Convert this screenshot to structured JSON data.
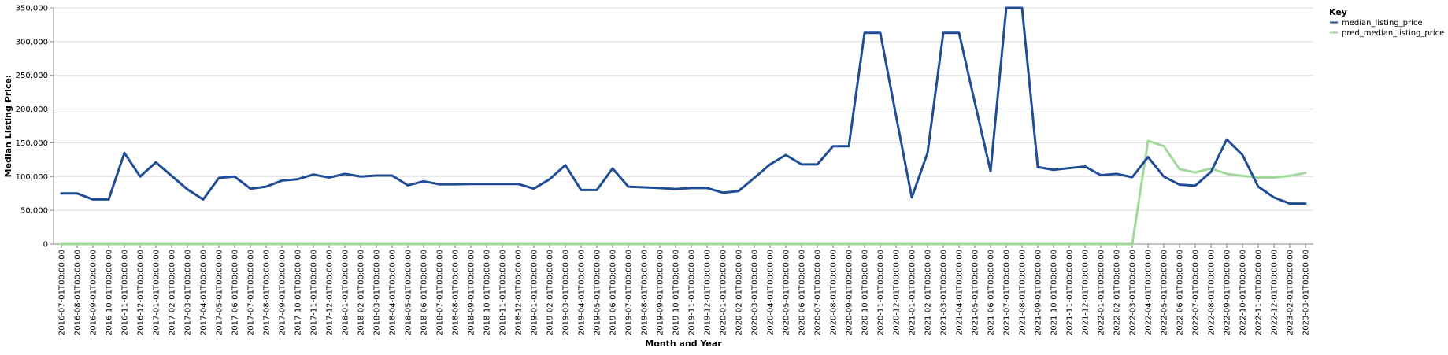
{
  "chart_data": {
    "type": "line",
    "xlabel": "Month and Year",
    "ylabel": "Median Listing Price:",
    "ylim": [
      0,
      350000
    ],
    "y_ticks": [
      0,
      50000,
      100000,
      150000,
      200000,
      250000,
      300000,
      350000
    ],
    "y_tick_labels": [
      "0",
      "50,000",
      "100,000",
      "150,000",
      "200,000",
      "250,000",
      "300,000",
      "350,000"
    ],
    "grid": true,
    "legend_position": "top-right",
    "legend": {
      "title": "Key",
      "entries": [
        {
          "label": "median_listing_price",
          "color": "#1f4e96"
        },
        {
          "label": "pred_median_listing_price",
          "color": "#a1d99b"
        }
      ]
    },
    "categories": [
      "2016-07-01T00:00:00",
      "2016-08-01T00:00:00",
      "2016-09-01T00:00:00",
      "2016-10-01T00:00:00",
      "2016-11-01T00:00:00",
      "2016-12-01T00:00:00",
      "2017-01-01T00:00:00",
      "2017-02-01T00:00:00",
      "2017-03-01T00:00:00",
      "2017-04-01T00:00:00",
      "2017-05-01T00:00:00",
      "2017-06-01T00:00:00",
      "2017-07-01T00:00:00",
      "2017-08-01T00:00:00",
      "2017-09-01T00:00:00",
      "2017-10-01T00:00:00",
      "2017-11-01T00:00:00",
      "2017-12-01T00:00:00",
      "2018-01-01T00:00:00",
      "2018-02-01T00:00:00",
      "2018-03-01T00:00:00",
      "2018-04-01T00:00:00",
      "2018-05-01T00:00:00",
      "2018-06-01T00:00:00",
      "2018-07-01T00:00:00",
      "2018-08-01T00:00:00",
      "2018-09-01T00:00:00",
      "2018-10-01T00:00:00",
      "2018-11-01T00:00:00",
      "2018-12-01T00:00:00",
      "2019-01-01T00:00:00",
      "2019-02-01T00:00:00",
      "2019-03-01T00:00:00",
      "2019-04-01T00:00:00",
      "2019-05-01T00:00:00",
      "2019-06-01T00:00:00",
      "2019-07-01T00:00:00",
      "2019-08-01T00:00:00",
      "2019-09-01T00:00:00",
      "2019-10-01T00:00:00",
      "2019-11-01T00:00:00",
      "2019-12-01T00:00:00",
      "2020-01-01T00:00:00",
      "2020-02-01T00:00:00",
      "2020-03-01T00:00:00",
      "2020-04-01T00:00:00",
      "2020-05-01T00:00:00",
      "2020-06-01T00:00:00",
      "2020-07-01T00:00:00",
      "2020-08-01T00:00:00",
      "2020-09-01T00:00:00",
      "2020-10-01T00:00:00",
      "2020-11-01T00:00:00",
      "2020-12-01T00:00:00",
      "2021-01-01T00:00:00",
      "2021-02-01T00:00:00",
      "2021-03-01T00:00:00",
      "2021-04-01T00:00:00",
      "2021-05-01T00:00:00",
      "2021-06-01T00:00:00",
      "2021-07-01T00:00:00",
      "2021-08-01T00:00:00",
      "2021-09-01T00:00:00",
      "2021-10-01T00:00:00",
      "2021-11-01T00:00:00",
      "2021-12-01T00:00:00",
      "2022-01-01T00:00:00",
      "2022-02-01T00:00:00",
      "2022-03-01T00:00:00",
      "2022-04-01T00:00:00",
      "2022-05-01T00:00:00",
      "2022-06-01T00:00:00",
      "2022-07-01T00:00:00",
      "2022-08-01T00:00:00",
      "2022-09-01T00:00:00",
      "2022-10-01T00:00:00",
      "2022-11-01T00:00:00",
      "2022-12-01T00:00:00",
      "2023-02-01T00:00:00",
      "2023-03-01T00:00:00"
    ],
    "series": [
      {
        "name": "median_listing_price",
        "color": "#1f4e96",
        "values": [
          75000,
          75000,
          66000,
          66000,
          135000,
          100000,
          121000,
          101000,
          81000,
          66000,
          98000,
          100000,
          82000,
          85000,
          94000,
          96000,
          103000,
          98500,
          104000,
          100000,
          101500,
          101500,
          87000,
          93000,
          88500,
          88500,
          89000,
          89000,
          89000,
          89000,
          82000,
          96000,
          117000,
          80000,
          80000,
          112000,
          85000,
          84000,
          83000,
          81500,
          83000,
          83000,
          76000,
          78500,
          98000,
          118000,
          132000,
          118000,
          118000,
          145000,
          145000,
          313000,
          313000,
          190000,
          69000,
          135000,
          313000,
          313000,
          210000,
          108000,
          350000,
          350000,
          114000,
          110000,
          112500,
          115000,
          102000,
          104000,
          99000,
          129000,
          100000,
          88000,
          86500,
          107000,
          155000,
          132000,
          85000,
          69000,
          60000,
          60000
        ]
      },
      {
        "name": "pred_median_listing_price",
        "color": "#a1d99b",
        "values": [
          0,
          0,
          0,
          0,
          0,
          0,
          0,
          0,
          0,
          0,
          0,
          0,
          0,
          0,
          0,
          0,
          0,
          0,
          0,
          0,
          0,
          0,
          0,
          0,
          0,
          0,
          0,
          0,
          0,
          0,
          0,
          0,
          0,
          0,
          0,
          0,
          0,
          0,
          0,
          0,
          0,
          0,
          0,
          0,
          0,
          0,
          0,
          0,
          0,
          0,
          0,
          0,
          0,
          0,
          0,
          0,
          0,
          0,
          0,
          0,
          0,
          0,
          0,
          0,
          0,
          0,
          0,
          0,
          0,
          153000,
          145000,
          111000,
          106000,
          112000,
          104000,
          101000,
          98500,
          98500,
          101000,
          105500
        ]
      }
    ]
  }
}
